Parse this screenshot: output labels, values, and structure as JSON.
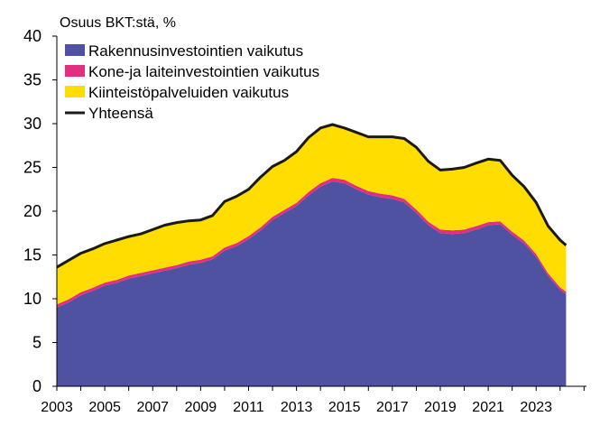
{
  "chart_data": {
    "type": "area",
    "ylabel": "Osuus BKT:stä, %",
    "ylim": [
      0,
      40
    ],
    "yticks": [
      0,
      5,
      10,
      15,
      20,
      25,
      30,
      35,
      40
    ],
    "xlim": [
      2003.0,
      2025.1
    ],
    "xticks": [
      2003,
      2005,
      2007,
      2009,
      2011,
      2013,
      2015,
      2017,
      2019,
      2021,
      2023
    ],
    "grid": false,
    "legend_position": "top-left",
    "x": [
      2003.0,
      2003.5,
      2004.0,
      2004.5,
      2005.0,
      2005.5,
      2006.0,
      2006.5,
      2007.0,
      2007.5,
      2008.0,
      2008.5,
      2009.0,
      2009.5,
      2010.0,
      2010.5,
      2011.0,
      2011.5,
      2012.0,
      2012.5,
      2013.0,
      2013.5,
      2014.0,
      2014.5,
      2015.0,
      2015.5,
      2016.0,
      2016.5,
      2017.0,
      2017.5,
      2018.0,
      2018.5,
      2019.0,
      2019.5,
      2020.0,
      2020.5,
      2021.0,
      2021.5,
      2022.0,
      2022.5,
      2023.0,
      2023.5,
      2024.0,
      2024.25
    ],
    "series": [
      {
        "name": "Rakennusinvestointien vaikutus",
        "color": "#4f52a0",
        "values": [
          9.0,
          9.6,
          10.4,
          10.9,
          11.5,
          11.8,
          12.3,
          12.6,
          12.9,
          13.2,
          13.5,
          13.9,
          14.1,
          14.5,
          15.5,
          16.0,
          16.8,
          17.8,
          19.0,
          19.8,
          20.6,
          21.8,
          22.8,
          23.4,
          23.2,
          22.5,
          21.9,
          21.6,
          21.4,
          21.0,
          19.8,
          18.4,
          17.5,
          17.4,
          17.5,
          17.9,
          18.4,
          18.5,
          17.3,
          16.3,
          14.8,
          12.6,
          11.0,
          10.5
        ]
      },
      {
        "name": "Kone-ja laiteinvestointien vaikutus",
        "color": "#e0307f",
        "values": [
          0.35,
          0.35,
          0.35,
          0.35,
          0.35,
          0.35,
          0.35,
          0.35,
          0.35,
          0.35,
          0.35,
          0.35,
          0.35,
          0.35,
          0.35,
          0.35,
          0.35,
          0.35,
          0.35,
          0.35,
          0.35,
          0.4,
          0.4,
          0.4,
          0.4,
          0.4,
          0.4,
          0.4,
          0.4,
          0.4,
          0.4,
          0.4,
          0.4,
          0.4,
          0.4,
          0.4,
          0.35,
          0.35,
          0.35,
          0.35,
          0.3,
          0.3,
          0.3,
          0.3
        ]
      },
      {
        "name": "Kiinteistöpalveluiden vaikutus",
        "color": "#ffdd00",
        "values": [
          4.25,
          4.45,
          4.45,
          4.45,
          4.45,
          4.55,
          4.45,
          4.45,
          4.65,
          4.85,
          4.85,
          4.65,
          4.55,
          4.65,
          5.25,
          5.35,
          5.35,
          5.75,
          5.75,
          5.65,
          5.85,
          6.2,
          6.3,
          6.1,
          5.9,
          6.1,
          6.2,
          6.5,
          6.7,
          6.9,
          7.1,
          6.9,
          6.8,
          7.0,
          7.1,
          7.2,
          7.2,
          6.95,
          6.45,
          6.15,
          5.9,
          5.4,
          5.4,
          5.3
        ]
      },
      {
        "name": "Yhteensä",
        "color": "#1a1a1a",
        "values": [
          13.6,
          14.4,
          15.2,
          15.7,
          16.3,
          16.7,
          17.1,
          17.4,
          17.9,
          18.4,
          18.7,
          18.9,
          19.0,
          19.5,
          21.1,
          21.7,
          22.5,
          23.9,
          25.1,
          25.8,
          26.8,
          28.4,
          29.5,
          29.9,
          29.5,
          29.0,
          28.5,
          28.5,
          28.5,
          28.3,
          27.3,
          25.7,
          24.7,
          24.8,
          25.0,
          25.5,
          25.95,
          25.8,
          24.1,
          22.8,
          21.0,
          18.3,
          16.7,
          16.1
        ]
      }
    ]
  }
}
